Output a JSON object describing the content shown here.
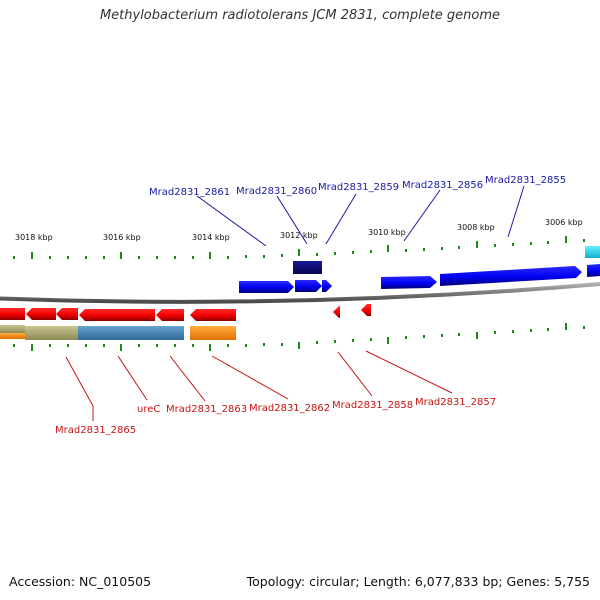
{
  "title": "Methylobacterium radiotolerans JCM 2831, complete genome",
  "accession_text": "Accession: NC_010505",
  "summary_text": "Topology: circular; Length: 6,077,833 bp; Genes: 5,755",
  "colors": {
    "forward_gene": "#0a0aff",
    "reverse_gene": "#ff0000",
    "forward_label": "#1a1aa8",
    "reverse_label": "#c81414",
    "backbone": "#7a7a7a",
    "tick": "#1a8a1a",
    "navy_feature": "#0c0c7a",
    "cyan_feature": "#22d4ee",
    "olive_feature": "#b0ac72",
    "steel_feature": "#4a86b8",
    "orange_feature": "#ff8c00"
  },
  "scale": {
    "unit": "kbp",
    "ticks": [
      "3018 kbp",
      "3016 kbp",
      "3014 kbp",
      "3012 kbp",
      "3010 kbp",
      "3008 kbp",
      "3006 kbp"
    ]
  },
  "genes": {
    "forward": [
      "Mrad2831_2861",
      "Mrad2831_2860",
      "Mrad2831_2859",
      "Mrad2831_2856",
      "Mrad2831_2855"
    ],
    "reverse": [
      "Mrad2831_2865",
      "ureC",
      "Mrad2831_2863",
      "Mrad2831_2862",
      "Mrad2831_2858",
      "Mrad2831_2857"
    ]
  }
}
